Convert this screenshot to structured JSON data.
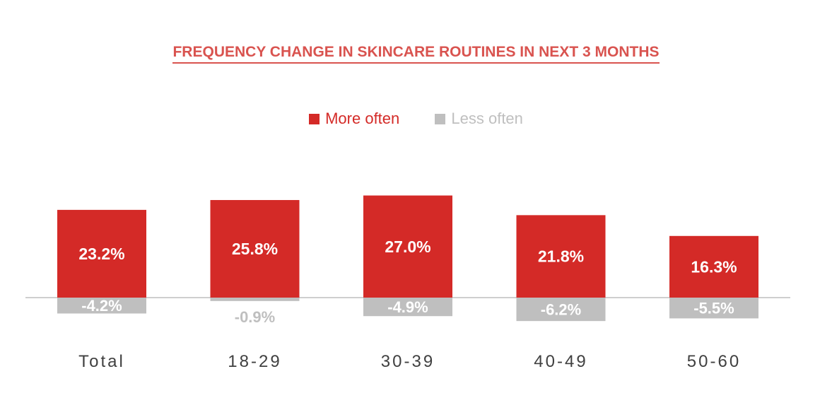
{
  "chart_data": {
    "type": "bar",
    "title": "FREQUENCY CHANGE IN SKINCARE ROUTINES IN NEXT 3 MONTHS",
    "categories": [
      "Total",
      "18-29",
      "30-39",
      "40-49",
      "50-60"
    ],
    "series": [
      {
        "name": "More often",
        "color": "#d42a27",
        "values": [
          23.2,
          25.8,
          27.0,
          21.8,
          16.3
        ],
        "labels": [
          "23.2%",
          "25.8%",
          "27.0%",
          "21.8%",
          "16.3%"
        ]
      },
      {
        "name": "Less often",
        "color": "#bfbfbf",
        "values": [
          -4.2,
          -0.9,
          -4.9,
          -6.2,
          -5.5
        ],
        "labels": [
          "-4.2%",
          "-0.9%",
          "-4.9%",
          "-6.2%",
          "-5.5%"
        ]
      }
    ],
    "ylim": [
      -10,
      30
    ],
    "grid": false,
    "legend": "top-center",
    "title_color": "#d9534f",
    "axis_color": "#bfbfbf",
    "category_label_color": "#404040"
  }
}
